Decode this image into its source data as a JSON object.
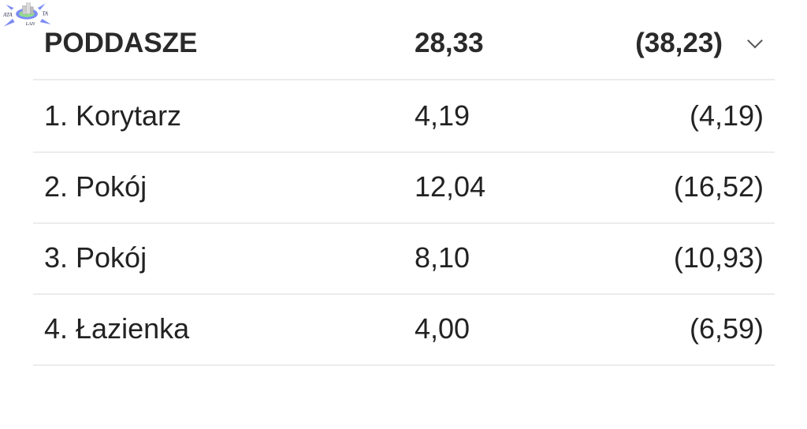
{
  "logo": {
    "text_left": "ATA",
    "text_right": "TA",
    "text_bottom": "LAN"
  },
  "header": {
    "name": "PODDASZE",
    "area": "28,33",
    "total": "(38,23)",
    "icon": "chevron-down-icon"
  },
  "rows": [
    {
      "name": "1. Korytarz",
      "area": "4,19",
      "total": "(4,19)"
    },
    {
      "name": "2. Pokój",
      "area": "12,04",
      "total": "(16,52)"
    },
    {
      "name": "3. Pokój",
      "area": "8,10",
      "total": "(10,93)"
    },
    {
      "name": "4. Łazienka",
      "area": "4,00",
      "total": "(6,59)"
    }
  ]
}
